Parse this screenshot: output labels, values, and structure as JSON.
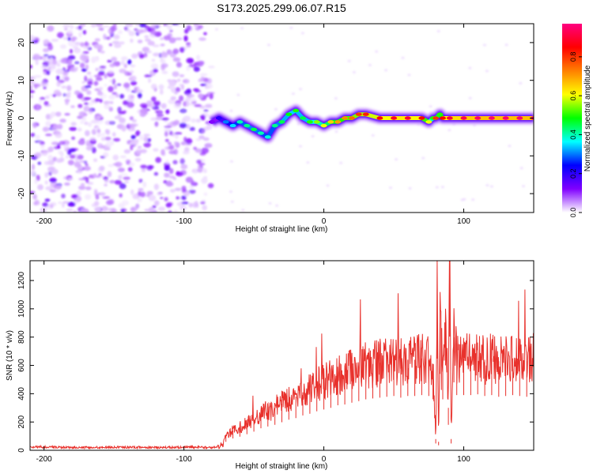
{
  "title": "S173.2025.299.06.07.R15",
  "chart_data": [
    {
      "id": "spectrogram",
      "type": "heatmap",
      "xlabel": "Height of straight line (km)",
      "ylabel": "Frequency (Hz)",
      "xlim": [
        -210,
        150
      ],
      "ylim": [
        -25,
        25
      ],
      "xticks": [
        -200,
        -100,
        0,
        100
      ],
      "yticks": [
        -20,
        -10,
        0,
        10,
        20
      ],
      "noise_region_x": [
        -210,
        -80
      ],
      "ridge": {
        "x": [
          -80,
          -75,
          -70,
          -65,
          -60,
          -55,
          -50,
          -45,
          -40,
          -35,
          -30,
          -25,
          -20,
          -15,
          -10,
          -5,
          0,
          5,
          10,
          15,
          20,
          25,
          30,
          40,
          50,
          60,
          70,
          75,
          78,
          80,
          83,
          85,
          90,
          100,
          110,
          120,
          130,
          140,
          150
        ],
        "freq": [
          -1,
          0,
          -1,
          -2,
          -1,
          -2,
          -3,
          -4,
          -5,
          -2,
          -1,
          1,
          2,
          0,
          -1,
          -1,
          -2,
          -1,
          -1,
          0,
          0,
          1,
          1,
          0,
          0,
          0,
          0,
          -1,
          0,
          0,
          1,
          0,
          0,
          0,
          0,
          0,
          0,
          0,
          0
        ],
        "amplitude": [
          0.12,
          0.2,
          0.3,
          0.35,
          0.4,
          0.42,
          0.45,
          0.4,
          0.38,
          0.42,
          0.45,
          0.48,
          0.5,
          0.45,
          0.5,
          0.55,
          0.6,
          0.65,
          0.7,
          0.72,
          0.75,
          0.8,
          0.82,
          0.85,
          0.88,
          0.9,
          0.85,
          0.6,
          0.5,
          0.8,
          0.5,
          0.85,
          0.9,
          0.92,
          0.95,
          0.95,
          0.95,
          0.95,
          0.95
        ]
      }
    },
    {
      "id": "colorbar",
      "label": "Normalized spectral amplitude",
      "range": [
        0,
        0.97
      ],
      "ticks": [
        "0.0",
        "0.2",
        "0.4",
        "0.6",
        "0.8"
      ],
      "tick_values": [
        0,
        0.2,
        0.4,
        0.6,
        0.8
      ],
      "colors": [
        "#ffffff",
        "#8000ff",
        "#0000ff",
        "#00ffff",
        "#00ff00",
        "#ffff00",
        "#ff8000",
        "#ff0000",
        "#ff0080"
      ]
    },
    {
      "id": "snr",
      "type": "line",
      "xlabel": "Height of straight line (km)",
      "ylabel": "SNR (10 * v/v)",
      "xlim": [
        -210,
        150
      ],
      "ylim": [
        0,
        1340
      ],
      "xticks": [
        -200,
        -100,
        0,
        100
      ],
      "yticks": [
        0,
        200,
        400,
        600,
        800,
        1000,
        1200
      ],
      "color": "#e8312c",
      "x": [
        -210,
        -180,
        -150,
        -120,
        -90,
        -80,
        -72,
        -70,
        -65,
        -60,
        -55,
        -50,
        -45,
        -40,
        -35,
        -30,
        -25,
        -20,
        -15,
        -10,
        -5,
        0,
        5,
        10,
        15,
        20,
        25,
        30,
        35,
        40,
        45,
        50,
        55,
        60,
        65,
        70,
        75,
        78,
        80,
        81,
        82,
        83,
        85,
        87,
        89,
        90,
        91,
        93,
        95,
        100,
        105,
        110,
        115,
        120,
        125,
        130,
        135,
        140,
        145,
        150
      ],
      "y": [
        25,
        20,
        22,
        20,
        22,
        18,
        40,
        100,
        140,
        160,
        190,
        220,
        260,
        280,
        300,
        330,
        360,
        380,
        410,
        430,
        460,
        480,
        500,
        530,
        540,
        560,
        580,
        600,
        610,
        620,
        630,
        640,
        620,
        640,
        640,
        650,
        640,
        600,
        80,
        1080,
        60,
        900,
        600,
        1000,
        300,
        1340,
        80,
        800,
        650,
        650,
        650,
        660,
        640,
        650,
        630,
        640,
        650,
        640,
        630,
        650
      ]
    }
  ]
}
